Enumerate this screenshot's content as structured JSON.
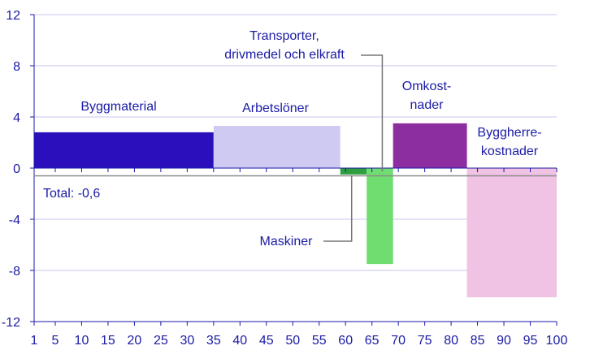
{
  "chart_data": {
    "type": "bar",
    "ylim": [
      -12,
      12
    ],
    "yticks": [
      12,
      8,
      4,
      0,
      -4,
      -8,
      -12
    ],
    "xlim": [
      1,
      100
    ],
    "xticks": [
      1,
      5,
      10,
      15,
      20,
      25,
      30,
      35,
      40,
      45,
      50,
      55,
      60,
      65,
      70,
      75,
      80,
      85,
      90,
      95,
      100
    ],
    "grid": "horizontal",
    "segments": [
      {
        "name": "Byggmaterial",
        "x_start": 1,
        "x_end": 35,
        "value": 2.8,
        "color": "#2b0fbd"
      },
      {
        "name": "Arbetslöner",
        "x_start": 35,
        "x_end": 59,
        "value": 3.3,
        "color": "#cfcaf2"
      },
      {
        "name": "Maskiner",
        "x_start": 59,
        "x_end": 64,
        "value": -0.5,
        "color": "#2f9e3f"
      },
      {
        "name": "Transporter, drivmedel och elkraft",
        "x_start": 64,
        "x_end": 69,
        "value": -7.5,
        "color": "#6fdd6f"
      },
      {
        "name": "Omkostnader",
        "x_start": 69,
        "x_end": 83,
        "value": 3.5,
        "color": "#8d2ea0"
      },
      {
        "name": "Byggherrekostnader",
        "x_start": 83,
        "x_end": 101,
        "value": -10.1,
        "color": "#f0c2e3"
      }
    ],
    "total": {
      "label": "Total: -0,6",
      "value": -0.6
    }
  },
  "labels": {
    "byggmaterial": "Byggmaterial",
    "arbetsloner": "Arbetslöner",
    "transporter_line1": "Transporter,",
    "transporter_line2": "drivmedel och elkraft",
    "omkost_line1": "Omkost-",
    "omkost_line2": "nader",
    "byggherre_line1": "Byggherre-",
    "byggherre_line2": "kostnader",
    "maskiner": "Maskiner",
    "total": "Total: -0,6"
  }
}
